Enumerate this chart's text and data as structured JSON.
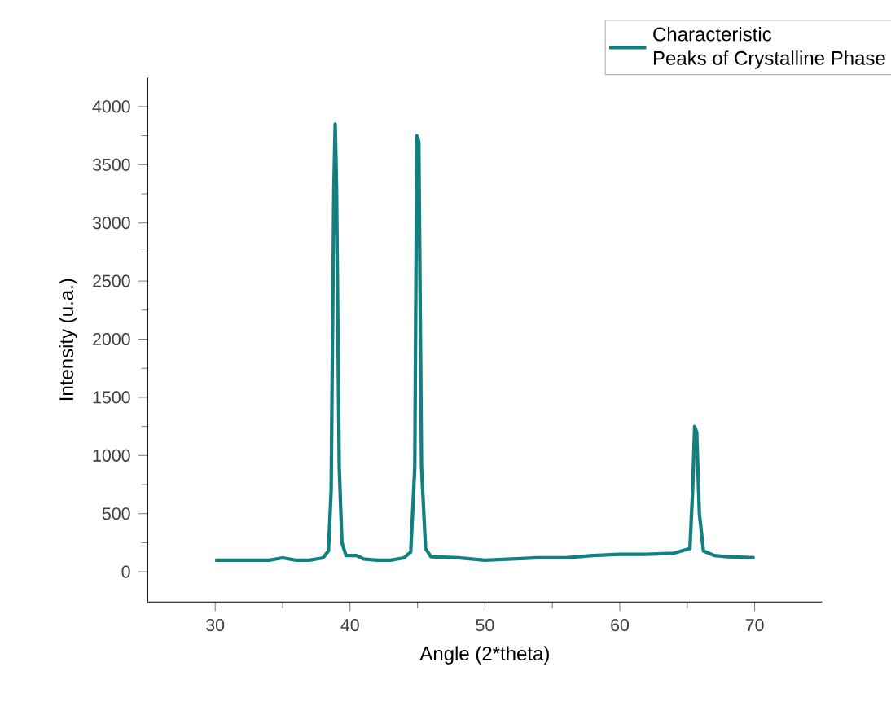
{
  "chart_data": {
    "type": "line",
    "xlabel": "Angle (2*theta)",
    "ylabel": "Intensity (u.a.)",
    "xlim": [
      25,
      75
    ],
    "xticks": [
      30,
      40,
      50,
      60,
      70
    ],
    "ylim": [
      -260,
      4250
    ],
    "yticks": [
      0,
      500,
      1000,
      1500,
      2000,
      2500,
      3000,
      3500,
      4000
    ],
    "legend": "top right",
    "grid": false,
    "series": [
      {
        "name": "Characteristic\nPeaks of Crystalline Phase",
        "color": "#138080",
        "x": [
          30,
          32,
          34,
          35,
          36,
          37,
          38,
          38.4,
          38.6,
          38.8,
          38.9,
          39.0,
          39.2,
          39.4,
          39.7,
          40.5,
          41,
          42,
          43,
          44,
          44.5,
          44.8,
          44.95,
          45.1,
          45.3,
          45.6,
          46,
          48,
          50,
          52,
          54,
          56,
          58,
          60,
          62,
          64,
          65.2,
          65.4,
          65.55,
          65.7,
          65.9,
          66.2,
          67,
          68,
          70
        ],
        "values": [
          100,
          100,
          100,
          120,
          100,
          100,
          120,
          180,
          700,
          3300,
          3850,
          3300,
          900,
          250,
          140,
          140,
          110,
          100,
          100,
          120,
          170,
          900,
          3750,
          3700,
          900,
          200,
          130,
          120,
          100,
          110,
          120,
          120,
          140,
          150,
          150,
          160,
          200,
          700,
          1250,
          1200,
          500,
          180,
          140,
          130,
          120
        ]
      }
    ]
  }
}
